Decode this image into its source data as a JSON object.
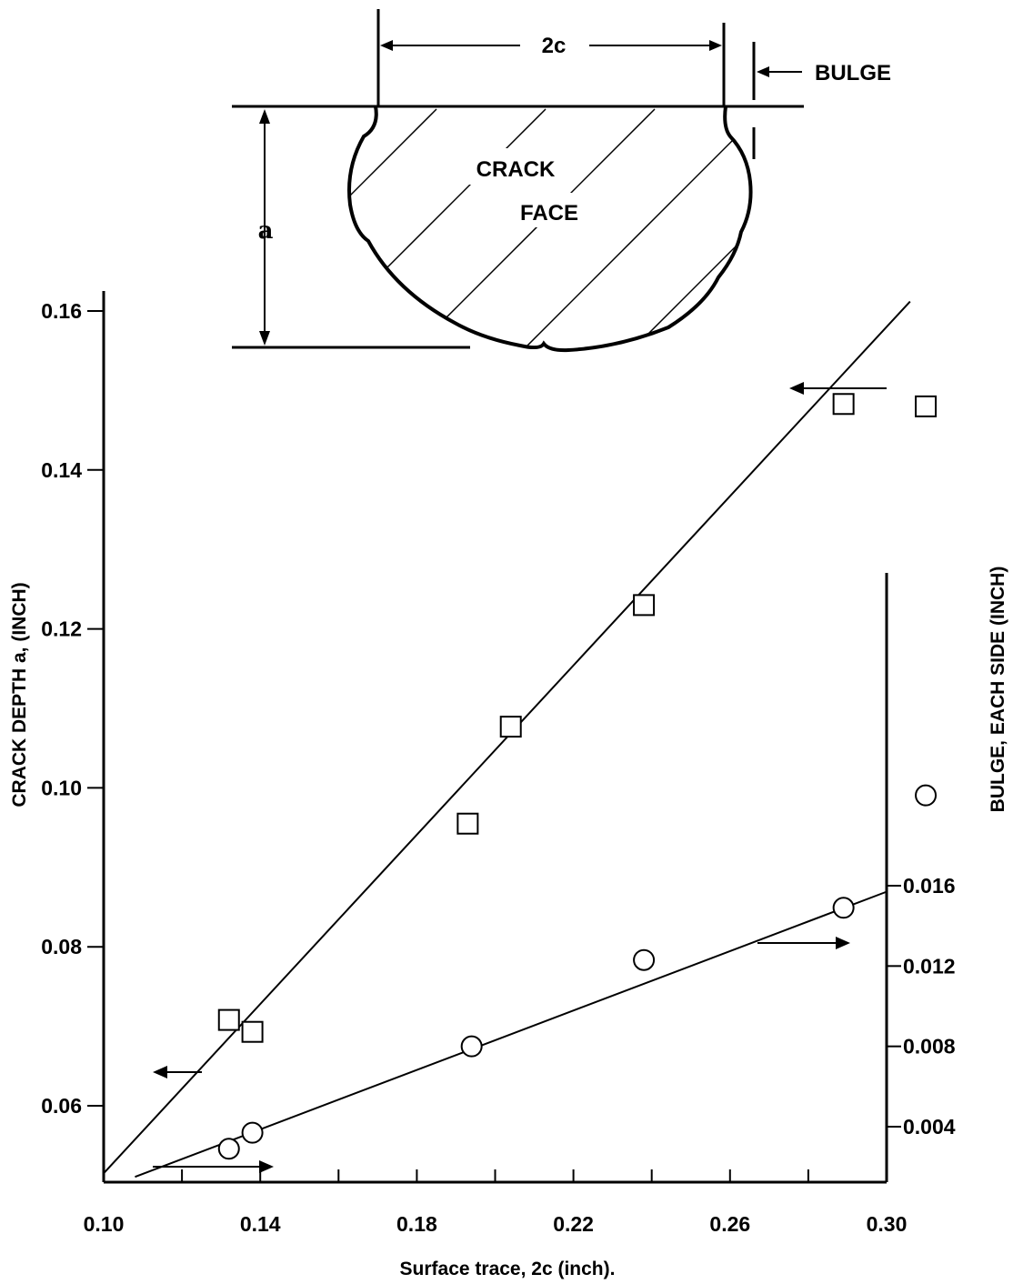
{
  "diagram": {
    "width_label": "2c",
    "bulge_label": "BULGE",
    "crack_label_1": "CRACK",
    "crack_label_2": "FACE",
    "depth_label": "a"
  },
  "chart_data": {
    "type": "scatter",
    "xlabel": "Surface trace, 2c (inch).",
    "ylabel_left": "CRACK DEPTH a, (INCH)",
    "ylabel_right": "BULGE, EACH SIDE (INCH)",
    "x_ticks": [
      0.1,
      0.14,
      0.18,
      0.22,
      0.26,
      0.3
    ],
    "x_tick_labels": [
      "0.10",
      "0.14",
      "0.18",
      "0.22",
      "0.26",
      "0.30"
    ],
    "y_left_ticks": [
      0.06,
      0.08,
      0.1,
      0.12,
      0.14,
      0.16
    ],
    "y_left_tick_labels": [
      "0.06",
      "0.08",
      "0.10",
      "0.12",
      "0.14",
      "0.16"
    ],
    "y_right_ticks": [
      0.004,
      0.008,
      0.012,
      0.016
    ],
    "y_right_tick_labels": [
      "0.004",
      "0.008",
      "0.012",
      "0.016"
    ],
    "xlim": [
      0.1,
      0.3
    ],
    "ylim_left": [
      0.05,
      0.163
    ],
    "ylim_right": [
      0.0,
      0.0315
    ],
    "series": [
      {
        "marker": "square",
        "axis": "left",
        "x": [
          0.132,
          0.138,
          0.193,
          0.204,
          0.238,
          0.289,
          0.31
        ],
        "y": [
          0.0708,
          0.0693,
          0.0955,
          0.1077,
          0.123,
          0.1483,
          0.148
        ]
      },
      {
        "marker": "circle",
        "axis": "right",
        "x": [
          0.132,
          0.138,
          0.194,
          0.238,
          0.289,
          0.31
        ],
        "y": [
          0.0029,
          0.0037,
          0.008,
          0.0123,
          0.0149,
          0.0205
        ]
      }
    ],
    "fit_lines": [
      {
        "axis": "left",
        "x": [
          0.1,
          0.306
        ],
        "y": [
          0.0515,
          0.1612
        ]
      },
      {
        "axis": "right",
        "x": [
          0.108,
          0.3
        ],
        "y": [
          0.0015,
          0.0157
        ]
      }
    ]
  }
}
